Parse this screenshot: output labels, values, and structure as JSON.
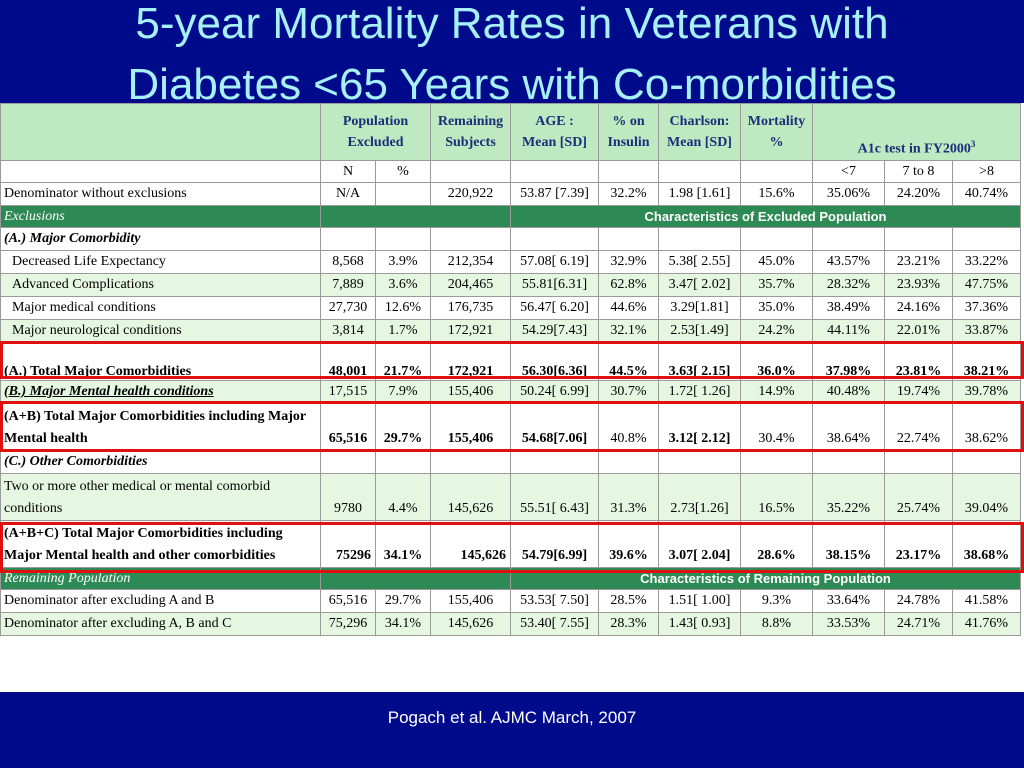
{
  "slide": {
    "title_line1": "5-year Mortality Rates in Veterans with",
    "title_line2": "Diabetes <65 Years with Co-morbidities",
    "citation": "Pogach et al. AJMC March, 2007"
  },
  "table": {
    "headers": {
      "pop_excluded": [
        "Population",
        "Excluded"
      ],
      "remaining": [
        "Remaining",
        "Subjects"
      ],
      "age": [
        "AGE :",
        "Mean [SD]"
      ],
      "insulin": [
        "% on",
        "Insulin"
      ],
      "charlson": [
        "Charlson:",
        "Mean [SD]"
      ],
      "mortality": [
        "Mortality",
        "%"
      ],
      "a1c": "A1c test in FY2000",
      "a1c_sup": "3"
    },
    "units": [
      "N",
      "%",
      "<7",
      "7 to 8",
      ">8"
    ],
    "sections": {
      "exclusions": "Exclusions",
      "excluded_band": "Characteristics of Excluded Population",
      "remaining": "Remaining Population",
      "remaining_band": "Characteristics of Remaining Population"
    },
    "rows": {
      "denom": [
        "Denominator without exclusions",
        "N/A",
        "",
        "220,922",
        "53.87 [7.39]",
        "32.2%",
        "1.98 [1.61]",
        "15.6%",
        "35.06%",
        "24.20%",
        "40.74%"
      ],
      "a_head": "(A.) Major Comorbidity",
      "a1": [
        "Decreased Life Expectancy",
        "8,568",
        "3.9%",
        "212,354",
        "57.08[ 6.19]",
        "32.9%",
        "5.38[ 2.55]",
        "45.0%",
        "43.57%",
        "23.21%",
        "33.22%"
      ],
      "a2": [
        "Advanced Complications",
        "7,889",
        "3.6%",
        "204,465",
        "55.81[6.31]",
        "62.8%",
        "3.47[ 2.02]",
        "35.7%",
        "28.32%",
        "23.93%",
        "47.75%"
      ],
      "a3": [
        "Major medical conditions",
        "27,730",
        "12.6%",
        "176,735",
        "56.47[ 6.20]",
        "44.6%",
        "3.29[1.81]",
        "35.0%",
        "38.49%",
        "24.16%",
        "37.36%"
      ],
      "a4": [
        "Major neurological conditions",
        "3,814",
        "1.7%",
        "172,921",
        "54.29[7.43]",
        "32.1%",
        "2.53[1.49]",
        "24.2%",
        "44.11%",
        "22.01%",
        "33.87%"
      ],
      "a_total": [
        "(A.) Total Major Comorbidities",
        "48,001",
        "21.7%",
        "172,921",
        "56.30[6.36]",
        "44.5%",
        "3.63[ 2.15]",
        "36.0%",
        "37.98%",
        "23.81%",
        "38.21%"
      ],
      "b": [
        "(B.) Major Mental health conditions",
        "17,515",
        "7.9%",
        "155,406",
        "50.24[ 6.99]",
        "30.7%",
        "1.72[ 1.26]",
        "14.9%",
        "40.48%",
        "19.74%",
        "39.78%"
      ],
      "ab": [
        "(A+B) Total Major Comorbidities including Major Mental health",
        "65,516",
        "29.7%",
        "155,406",
        "54.68[7.06]",
        "40.8%",
        "3.12[ 2.12]",
        "30.4%",
        "38.64%",
        "22.74%",
        "38.62%"
      ],
      "c_head": "(C.) Other Comorbidities",
      "c": [
        "Two or more other medical or mental comorbid conditions",
        "9780",
        "4.4%",
        "145,626",
        "55.51[ 6.43]",
        "31.3%",
        "2.73[1.26]",
        "16.5%",
        "35.22%",
        "25.74%",
        "39.04%"
      ],
      "abc": [
        "(A+B+C) Total Major Comorbidities including Major Mental health and other comorbidities",
        "75296",
        "34.1%",
        "145,626",
        "54.79[6.99]",
        "39.6%",
        "3.07[ 2.04]",
        "28.6%",
        "38.15%",
        "23.17%",
        "38.68%"
      ],
      "r1": [
        "Denominator after excluding A and B",
        "65,516",
        "29.7%",
        "155,406",
        "53.53[ 7.50]",
        "28.5%",
        "1.51[ 1.00]",
        "9.3%",
        "33.64%",
        "24.78%",
        "41.58%"
      ],
      "r2": [
        "Denominator after excluding A, B and C",
        "75,296",
        "34.1%",
        "145,626",
        "53.40[ 7.55]",
        "28.3%",
        "1.43[ 0.93]",
        "8.8%",
        "33.53%",
        "24.71%",
        "41.76%"
      ]
    }
  },
  "colors": {
    "slide_background": "#000b8c",
    "title": "#a8f0f8",
    "header_fill": "#bfe9c0",
    "section_fill": "#2e8a55",
    "row_tint": "#e6f7e1",
    "highlight_box": "#e01010"
  }
}
